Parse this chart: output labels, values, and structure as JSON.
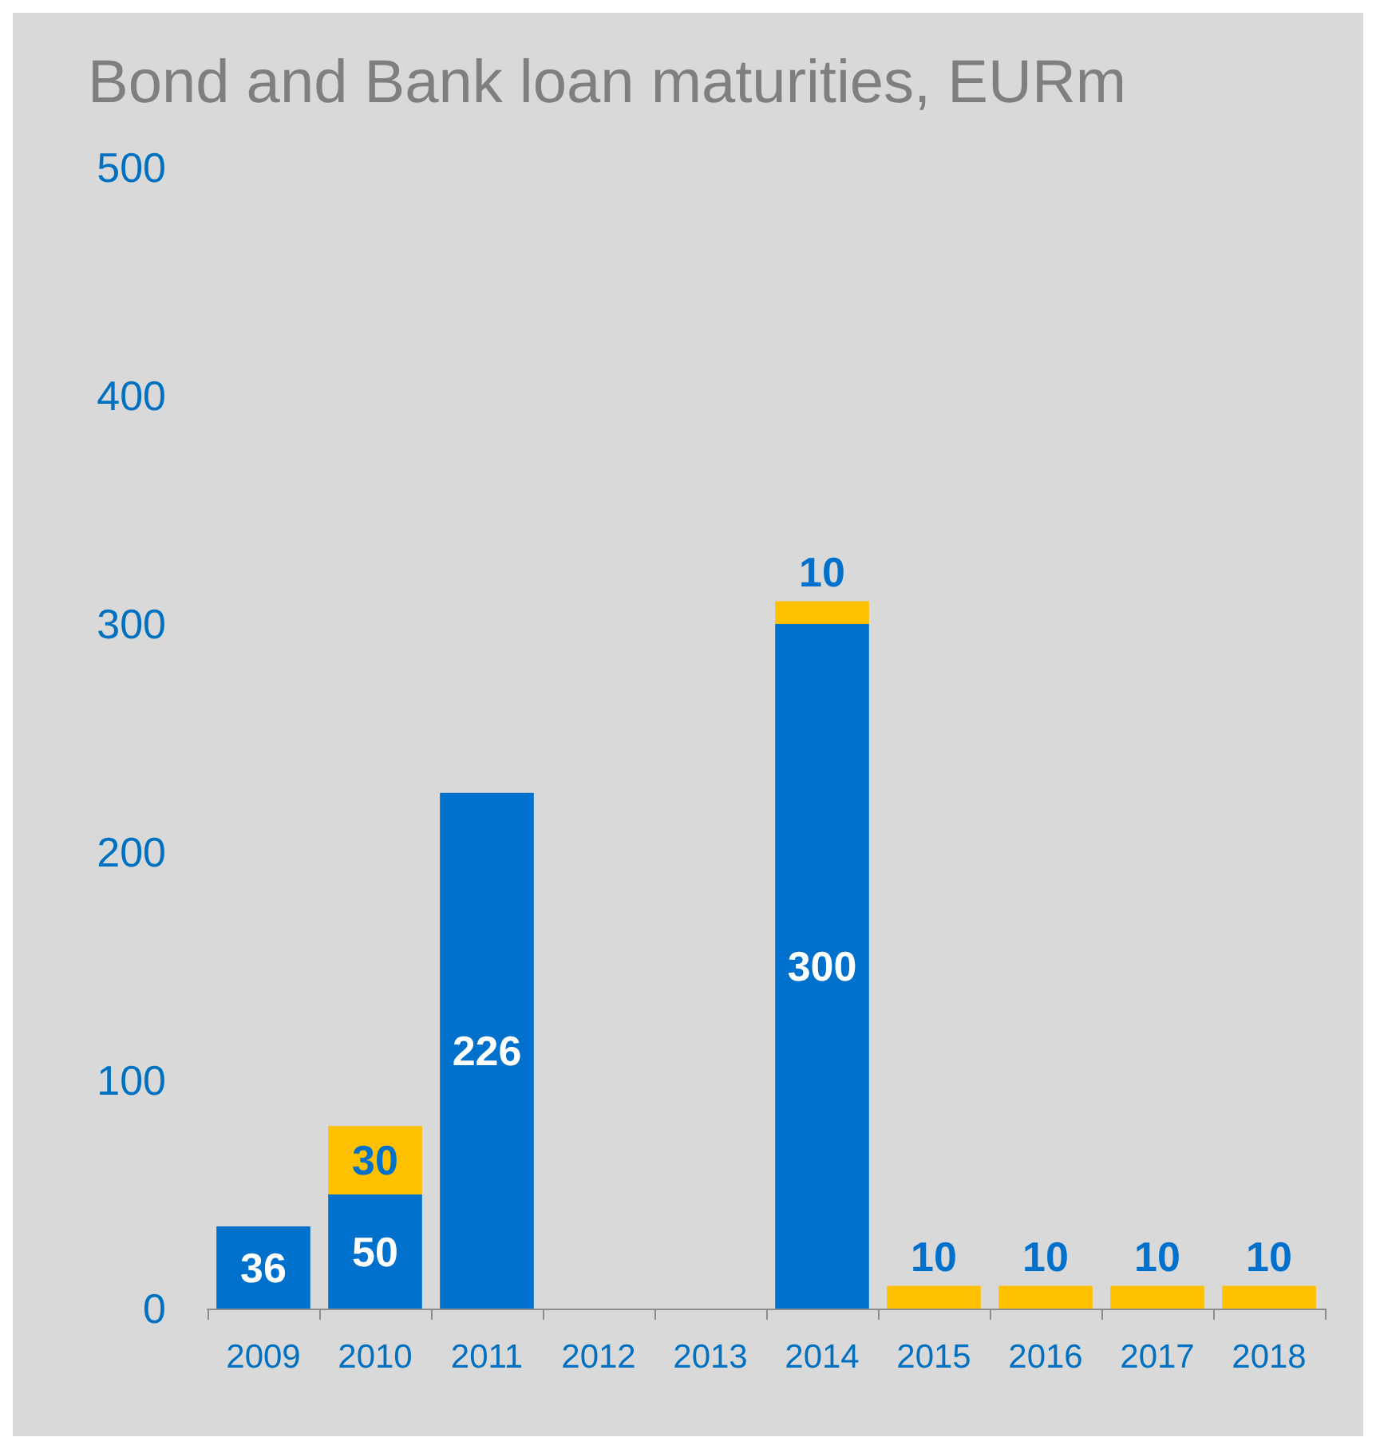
{
  "chart_data": {
    "type": "bar",
    "title": "Bond and Bank loan maturities, EURm",
    "categories": [
      "2009",
      "2010",
      "2011",
      "2012",
      "2013",
      "2014",
      "2015",
      "2016",
      "2017",
      "2018"
    ],
    "stacked": true,
    "data_labels": true,
    "series": [
      {
        "color": "#0070cd",
        "values": [
          36,
          50,
          226,
          null,
          null,
          300,
          null,
          null,
          null,
          null
        ]
      },
      {
        "color": "#ffc000",
        "values": [
          null,
          30,
          null,
          null,
          null,
          10,
          10,
          10,
          10,
          10
        ]
      }
    ],
    "ylim": [
      0,
      500
    ],
    "yticks": [
      0,
      100,
      200,
      300,
      400,
      500
    ],
    "grid": false
  }
}
